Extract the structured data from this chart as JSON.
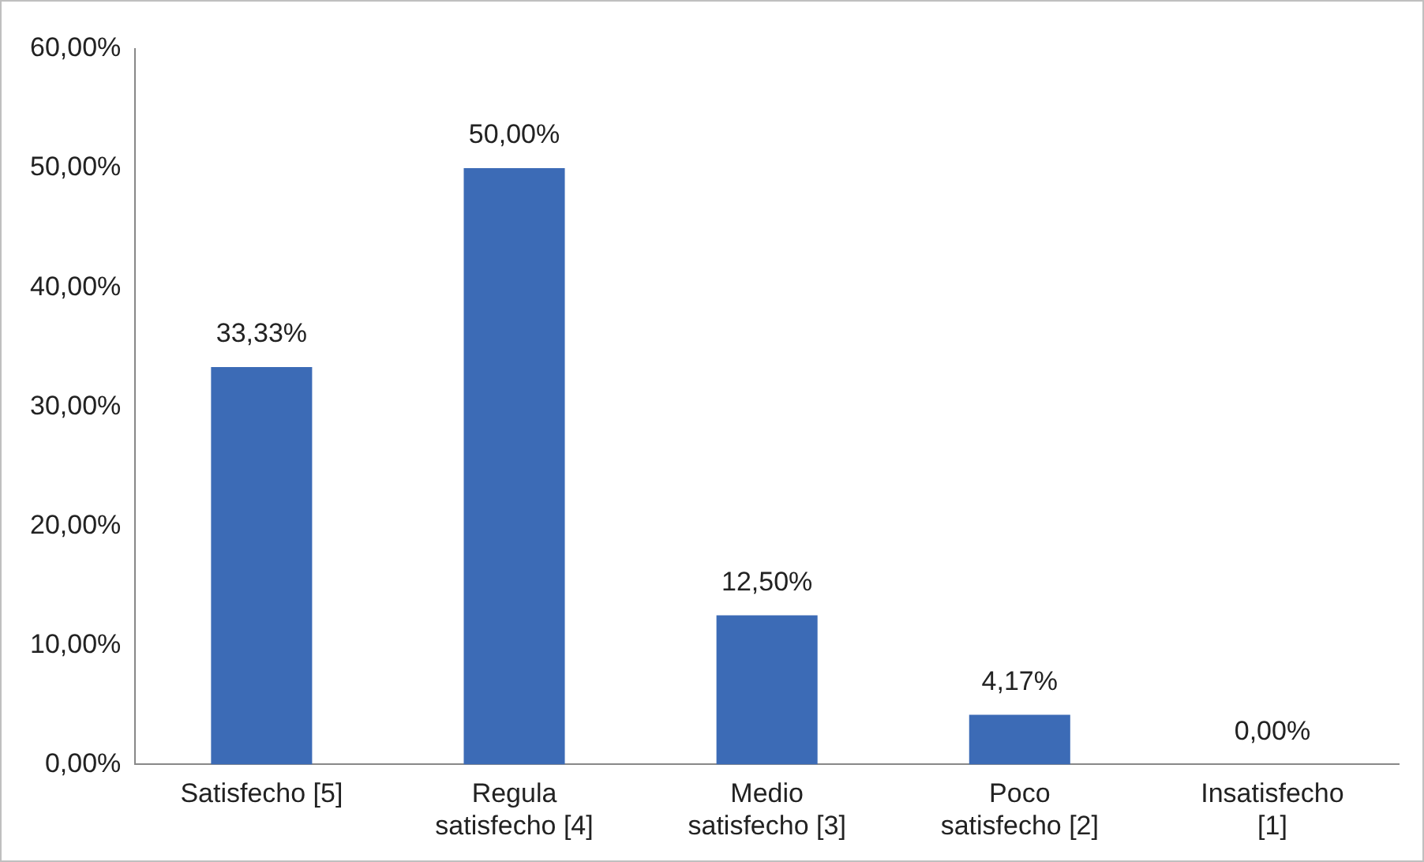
{
  "chart_data": {
    "type": "bar",
    "categories": [
      "Satisfecho [5]",
      "Regula satisfecho [4]",
      "Medio satisfecho [3]",
      "Poco satisfecho [2]",
      "Insatisfecho [1]"
    ],
    "values": [
      33.33,
      50,
      12.5,
      4.17,
      0
    ],
    "value_labels": [
      "33,33%",
      "50,00%",
      "12,50%",
      "4,17%",
      "0,00%"
    ],
    "color": "#3c6bb6",
    "ylim": [
      0,
      60
    ],
    "yticks": [
      {
        "value": 0,
        "label": "0,00%"
      },
      {
        "value": 10,
        "label": "10,00%"
      },
      {
        "value": 20,
        "label": "20,00%"
      },
      {
        "value": 30,
        "label": "30,00%"
      },
      {
        "value": 40,
        "label": "40,00%"
      },
      {
        "value": 50,
        "label": "50,00%"
      },
      {
        "value": 60,
        "label": "60,00%"
      }
    ],
    "grid": false,
    "legend": false
  }
}
